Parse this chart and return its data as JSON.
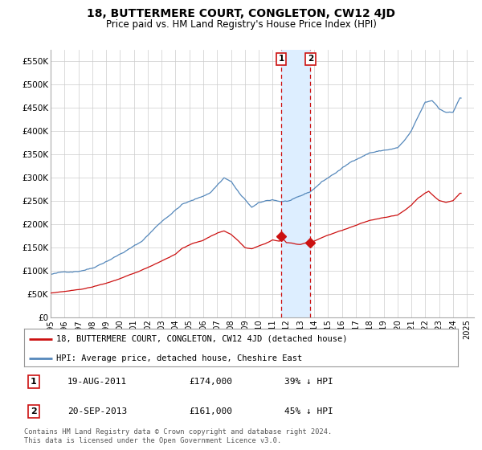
{
  "title": "18, BUTTERMERE COURT, CONGLETON, CW12 4JD",
  "subtitle": "Price paid vs. HM Land Registry's House Price Index (HPI)",
  "title_fontsize": 10,
  "subtitle_fontsize": 8.5,
  "ylim": [
    0,
    575000
  ],
  "yticks": [
    0,
    50000,
    100000,
    150000,
    200000,
    250000,
    300000,
    350000,
    400000,
    450000,
    500000,
    550000
  ],
  "ytick_labels": [
    "£0",
    "£50K",
    "£100K",
    "£150K",
    "£200K",
    "£250K",
    "£300K",
    "£350K",
    "£400K",
    "£450K",
    "£500K",
    "£550K"
  ],
  "xlim_start": 1995.0,
  "xlim_end": 2025.5,
  "background_color": "#ffffff",
  "grid_color": "#cccccc",
  "hpi_color": "#5588bb",
  "price_color": "#cc1111",
  "marker_color": "#cc1111",
  "shade_color": "#ddeeff",
  "transaction1_x": 2011.63,
  "transaction1_y": 174000,
  "transaction2_x": 2013.72,
  "transaction2_y": 161000,
  "transaction1_label": "1",
  "transaction2_label": "2",
  "legend_line1": "18, BUTTERMERE COURT, CONGLETON, CW12 4JD (detached house)",
  "legend_line2": "HPI: Average price, detached house, Cheshire East",
  "table_row1": [
    "1",
    "19-AUG-2011",
    "£174,000",
    "39% ↓ HPI"
  ],
  "table_row2": [
    "2",
    "20-SEP-2013",
    "£161,000",
    "45% ↓ HPI"
  ],
  "footnote": "Contains HM Land Registry data © Crown copyright and database right 2024.\nThis data is licensed under the Open Government Licence v3.0."
}
